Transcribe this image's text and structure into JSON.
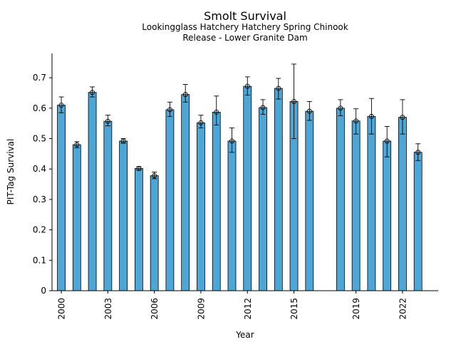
{
  "chart_data": {
    "type": "bar",
    "title": "Smolt Survival",
    "subtitle_lines": [
      "Lookingglass Hatchery Hatchery Spring Chinook",
      "Release - Lower Granite Dam"
    ],
    "xlabel": "Year",
    "ylabel": "PIT-Tag Survival",
    "ylim": [
      0,
      0.78
    ],
    "yticks": [
      0,
      0.1,
      0.2,
      0.3,
      0.4,
      0.5,
      0.6,
      0.7
    ],
    "ytick_labels": [
      "0",
      "0.1",
      "0.2",
      "0.3",
      "0.4",
      "0.5",
      "0.6",
      "0.7"
    ],
    "xlim": [
      1999.4,
      2024.3
    ],
    "xticks": [
      2000,
      2003,
      2006,
      2009,
      2012,
      2015,
      2019,
      2022
    ],
    "xtick_labels": [
      "2000",
      "2003",
      "2006",
      "2009",
      "2012",
      "2015",
      "2019",
      "2022"
    ],
    "grid": false,
    "bar_color": "#4da6d6",
    "data": [
      {
        "x": 2000,
        "value": 0.61,
        "low": 0.585,
        "high": 0.637
      },
      {
        "x": 2001,
        "value": 0.48,
        "low": 0.47,
        "high": 0.49
      },
      {
        "x": 2002,
        "value": 0.652,
        "low": 0.637,
        "high": 0.67
      },
      {
        "x": 2003,
        "value": 0.557,
        "low": 0.542,
        "high": 0.577
      },
      {
        "x": 2004,
        "value": 0.492,
        "low": 0.485,
        "high": 0.5
      },
      {
        "x": 2005,
        "value": 0.402,
        "low": 0.396,
        "high": 0.408
      },
      {
        "x": 2006,
        "value": 0.378,
        "low": 0.368,
        "high": 0.39
      },
      {
        "x": 2007,
        "value": 0.595,
        "low": 0.573,
        "high": 0.62
      },
      {
        "x": 2008,
        "value": 0.645,
        "low": 0.62,
        "high": 0.678
      },
      {
        "x": 2009,
        "value": 0.552,
        "low": 0.535,
        "high": 0.577
      },
      {
        "x": 2010,
        "value": 0.587,
        "low": 0.545,
        "high": 0.64
      },
      {
        "x": 2011,
        "value": 0.492,
        "low": 0.455,
        "high": 0.535
      },
      {
        "x": 2012,
        "value": 0.672,
        "low": 0.643,
        "high": 0.703
      },
      {
        "x": 2013,
        "value": 0.602,
        "low": 0.58,
        "high": 0.628
      },
      {
        "x": 2014,
        "value": 0.665,
        "low": 0.63,
        "high": 0.698
      },
      {
        "x": 2015,
        "value": 0.622,
        "low": 0.5,
        "high": 0.745
      },
      {
        "x": 2016,
        "value": 0.59,
        "low": 0.56,
        "high": 0.622
      },
      {
        "x": 2018,
        "value": 0.6,
        "low": 0.575,
        "high": 0.628
      },
      {
        "x": 2019,
        "value": 0.558,
        "low": 0.515,
        "high": 0.598
      },
      {
        "x": 2020,
        "value": 0.573,
        "low": 0.515,
        "high": 0.632
      },
      {
        "x": 2021,
        "value": 0.492,
        "low": 0.44,
        "high": 0.54
      },
      {
        "x": 2022,
        "value": 0.57,
        "low": 0.515,
        "high": 0.628
      },
      {
        "x": 2023,
        "value": 0.455,
        "low": 0.428,
        "high": 0.483
      }
    ]
  }
}
